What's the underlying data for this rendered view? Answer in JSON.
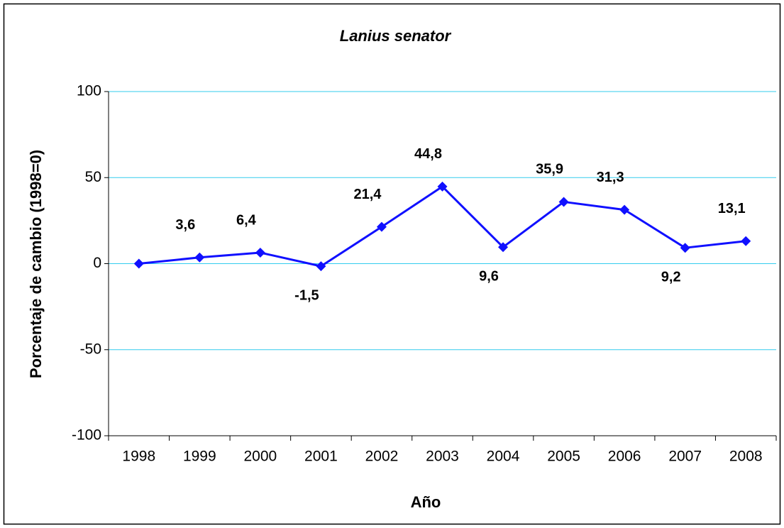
{
  "chart_data": {
    "type": "line",
    "title": "Lanius senator",
    "x_label": "Año",
    "y_label": "Porcentaje de cambio (1998=0)",
    "categories": [
      "1998",
      "1999",
      "2000",
      "2001",
      "2002",
      "2003",
      "2004",
      "2005",
      "2006",
      "2007",
      "2008"
    ],
    "values": [
      0,
      3.6,
      6.4,
      -1.5,
      21.4,
      44.8,
      9.6,
      35.9,
      31.3,
      9.2,
      13.1
    ],
    "value_labels": [
      null,
      "3,6",
      "6,4",
      "-1,5",
      "21,4",
      "44,8",
      "9,6",
      "35,9",
      "31,3",
      "9,2",
      "13,1"
    ],
    "color": "#1010ff",
    "grid_color": "#33ccee",
    "ylim": [
      -100,
      100
    ],
    "yticks": [
      -100,
      -50,
      0,
      50,
      100
    ],
    "grid": true
  }
}
